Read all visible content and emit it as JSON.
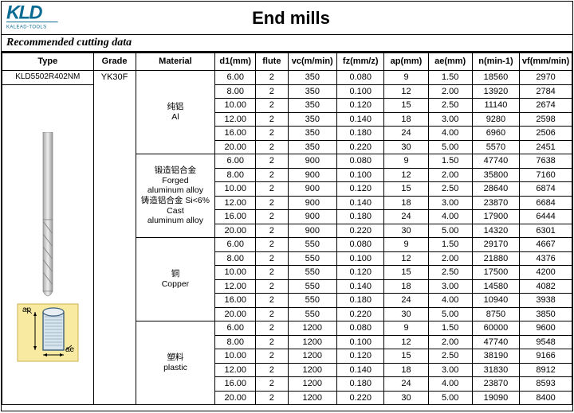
{
  "brand": {
    "name": "KLD",
    "tagline": "KALEAD-TOOLS",
    "color": "#0b6c93"
  },
  "title": "End mills",
  "subtitle": "Recommended cutting data",
  "columns": [
    "Type",
    "Grade",
    "Material",
    "d1(mm)",
    "flute",
    "vc(m/min)",
    "fz(mm/z)",
    "ap(mm)",
    "ae(mm)",
    "n(min-1)",
    "vf(mm/min)"
  ],
  "type_label": "KLD5502R402NM",
  "grade_label": "YK30F",
  "material_groups": [
    {
      "label_lines": [
        "纯铝",
        "Al"
      ],
      "rowspan": 6
    },
    {
      "label_lines": [
        "锻造铝合金",
        "Forged",
        "aluminum alloy",
        "铸造铝合金 Si<6%",
        "Cast",
        "aluminum alloy"
      ],
      "rowspan": 6
    },
    {
      "label_lines": [
        "铜",
        "Copper"
      ],
      "rowspan": 6
    },
    {
      "label_lines": [
        "塑料",
        "plastic"
      ],
      "rowspan": 6
    }
  ],
  "rows": [
    [
      "6.00",
      "2",
      "350",
      "0.080",
      "9",
      "1.50",
      "18560",
      "2970"
    ],
    [
      "8.00",
      "2",
      "350",
      "0.100",
      "12",
      "2.00",
      "13920",
      "2784"
    ],
    [
      "10.00",
      "2",
      "350",
      "0.120",
      "15",
      "2.50",
      "11140",
      "2674"
    ],
    [
      "12.00",
      "2",
      "350",
      "0.140",
      "18",
      "3.00",
      "9280",
      "2598"
    ],
    [
      "16.00",
      "2",
      "350",
      "0.180",
      "24",
      "4.00",
      "6960",
      "2506"
    ],
    [
      "20.00",
      "2",
      "350",
      "0.220",
      "30",
      "5.00",
      "5570",
      "2451"
    ],
    [
      "6.00",
      "2",
      "900",
      "0.080",
      "9",
      "1.50",
      "47740",
      "7638"
    ],
    [
      "8.00",
      "2",
      "900",
      "0.100",
      "12",
      "2.00",
      "35800",
      "7160"
    ],
    [
      "10.00",
      "2",
      "900",
      "0.120",
      "15",
      "2.50",
      "28640",
      "6874"
    ],
    [
      "12.00",
      "2",
      "900",
      "0.140",
      "18",
      "3.00",
      "23870",
      "6684"
    ],
    [
      "16.00",
      "2",
      "900",
      "0.180",
      "24",
      "4.00",
      "17900",
      "6444"
    ],
    [
      "20.00",
      "2",
      "900",
      "0.220",
      "30",
      "5.00",
      "14320",
      "6301"
    ],
    [
      "6.00",
      "2",
      "550",
      "0.080",
      "9",
      "1.50",
      "29170",
      "4667"
    ],
    [
      "8.00",
      "2",
      "550",
      "0.100",
      "12",
      "2.00",
      "21880",
      "4376"
    ],
    [
      "10.00",
      "2",
      "550",
      "0.120",
      "15",
      "2.50",
      "17500",
      "4200"
    ],
    [
      "12.00",
      "2",
      "550",
      "0.140",
      "18",
      "3.00",
      "14580",
      "4082"
    ],
    [
      "16.00",
      "2",
      "550",
      "0.180",
      "24",
      "4.00",
      "10940",
      "3938"
    ],
    [
      "20.00",
      "2",
      "550",
      "0.220",
      "30",
      "5.00",
      "8750",
      "3850"
    ],
    [
      "6.00",
      "2",
      "1200",
      "0.080",
      "9",
      "1.50",
      "60000",
      "9600"
    ],
    [
      "8.00",
      "2",
      "1200",
      "0.100",
      "12",
      "2.00",
      "47740",
      "9548"
    ],
    [
      "10.00",
      "2",
      "1200",
      "0.120",
      "15",
      "2.50",
      "38190",
      "9166"
    ],
    [
      "12.00",
      "2",
      "1200",
      "0.140",
      "18",
      "3.00",
      "31830",
      "8912"
    ],
    [
      "16.00",
      "2",
      "1200",
      "0.180",
      "24",
      "4.00",
      "23870",
      "8593"
    ],
    [
      "20.00",
      "2",
      "1200",
      "0.220",
      "30",
      "5.00",
      "19090",
      "8400"
    ]
  ],
  "diagram": {
    "bg": "#f8eaa0",
    "ap_label": "ap",
    "ae_label": "ae"
  }
}
